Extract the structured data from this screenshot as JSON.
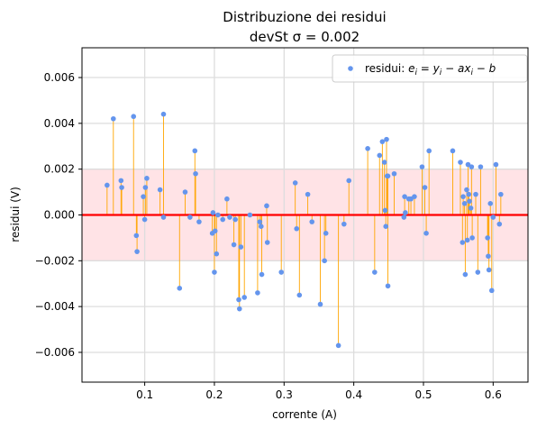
{
  "chart_data": {
    "type": "scatter",
    "title_lines": [
      "Distribuzione dei residui",
      "devSt σ = 0.002"
    ],
    "xlabel": "corrente (A)",
    "ylabel": "residui (V)",
    "xlim": [
      0.01,
      0.65
    ],
    "ylim": [
      -0.0073,
      0.0073
    ],
    "xticks": [
      0.1,
      0.2,
      0.3,
      0.4,
      0.5,
      0.6
    ],
    "xtick_labels": [
      "0.1",
      "0.2",
      "0.3",
      "0.4",
      "0.5",
      "0.6"
    ],
    "yticks": [
      -0.006,
      -0.004,
      -0.002,
      0.0,
      0.002,
      0.004,
      0.006
    ],
    "ytick_labels": [
      "−0.006",
      "−0.004",
      "−0.002",
      "0.000",
      "0.002",
      "0.004",
      "0.006"
    ],
    "grid": true,
    "band": {
      "ymin": -0.002,
      "ymax": 0.002,
      "color": "#ffe3e6"
    },
    "zero_line_color": "#ff0000",
    "stem_color": "#ffa500",
    "point_color": "#6495ed",
    "legend": {
      "label": "residui: e_i = y_i − a x_i − b",
      "placement": "upper right"
    },
    "points": [
      [
        0.046,
        0.0013
      ],
      [
        0.055,
        0.0042
      ],
      [
        0.066,
        0.0015
      ],
      [
        0.067,
        0.0012
      ],
      [
        0.084,
        0.0043
      ],
      [
        0.088,
        -0.0009
      ],
      [
        0.089,
        -0.0016
      ],
      [
        0.098,
        0.0008
      ],
      [
        0.1,
        -0.0002
      ],
      [
        0.101,
        0.0012
      ],
      [
        0.103,
        0.0016
      ],
      [
        0.122,
        0.0011
      ],
      [
        0.127,
        0.0044
      ],
      [
        0.127,
        -0.0001
      ],
      [
        0.15,
        -0.0032
      ],
      [
        0.158,
        0.001
      ],
      [
        0.165,
        -0.0001
      ],
      [
        0.172,
        0.0028
      ],
      [
        0.173,
        0.0018
      ],
      [
        0.178,
        -0.0003
      ],
      [
        0.197,
        -0.0008
      ],
      [
        0.198,
        0.0001
      ],
      [
        0.2,
        -0.0025
      ],
      [
        0.201,
        -0.0007
      ],
      [
        0.203,
        -0.0017
      ],
      [
        0.205,
        0.0
      ],
      [
        0.212,
        -0.0002
      ],
      [
        0.218,
        0.0007
      ],
      [
        0.222,
        -0.0001
      ],
      [
        0.228,
        -0.0013
      ],
      [
        0.23,
        -0.0002
      ],
      [
        0.235,
        -0.0037
      ],
      [
        0.236,
        -0.0041
      ],
      [
        0.238,
        -0.0014
      ],
      [
        0.243,
        -0.0036
      ],
      [
        0.251,
        0.0
      ],
      [
        0.262,
        -0.0034
      ],
      [
        0.265,
        -0.0003
      ],
      [
        0.267,
        -0.0005
      ],
      [
        0.268,
        -0.0026
      ],
      [
        0.275,
        0.0004
      ],
      [
        0.276,
        -0.0012
      ],
      [
        0.296,
        -0.0025
      ],
      [
        0.316,
        0.0014
      ],
      [
        0.318,
        -0.0006
      ],
      [
        0.322,
        -0.0035
      ],
      [
        0.334,
        0.0009
      ],
      [
        0.34,
        -0.0003
      ],
      [
        0.352,
        -0.0039
      ],
      [
        0.358,
        -0.002
      ],
      [
        0.36,
        -0.0008
      ],
      [
        0.378,
        -0.0057
      ],
      [
        0.386,
        -0.0004
      ],
      [
        0.393,
        0.0015
      ],
      [
        0.42,
        0.0029
      ],
      [
        0.43,
        -0.0025
      ],
      [
        0.437,
        0.0026
      ],
      [
        0.441,
        0.0032
      ],
      [
        0.444,
        0.0023
      ],
      [
        0.445,
        0.0002
      ],
      [
        0.446,
        -0.0005
      ],
      [
        0.447,
        0.0033
      ],
      [
        0.448,
        0.0017
      ],
      [
        0.449,
        0.0017
      ],
      [
        0.449,
        -0.0031
      ],
      [
        0.458,
        0.0018
      ],
      [
        0.472,
        -0.0001
      ],
      [
        0.473,
        0.0008
      ],
      [
        0.474,
        0.0001
      ],
      [
        0.479,
        0.0007
      ],
      [
        0.482,
        0.0007
      ],
      [
        0.487,
        0.0008
      ],
      [
        0.498,
        0.0021
      ],
      [
        0.502,
        0.0012
      ],
      [
        0.504,
        -0.0008
      ],
      [
        0.508,
        0.0028
      ],
      [
        0.542,
        0.0028
      ],
      [
        0.553,
        0.0023
      ],
      [
        0.556,
        -0.0012
      ],
      [
        0.557,
        0.0008
      ],
      [
        0.559,
        0.0005
      ],
      [
        0.56,
        -0.0026
      ],
      [
        0.562,
        0.0011
      ],
      [
        0.563,
        -0.0011
      ],
      [
        0.564,
        0.0022
      ],
      [
        0.565,
        0.0009
      ],
      [
        0.566,
        0.0006
      ],
      [
        0.568,
        0.0003
      ],
      [
        0.569,
        0.0021
      ],
      [
        0.57,
        -0.001
      ],
      [
        0.575,
        0.0009
      ],
      [
        0.578,
        -0.0025
      ],
      [
        0.582,
        0.0021
      ],
      [
        0.592,
        -0.001
      ],
      [
        0.593,
        -0.0018
      ],
      [
        0.594,
        -0.0024
      ],
      [
        0.596,
        0.0005
      ],
      [
        0.598,
        -0.0033
      ],
      [
        0.6,
        -0.0001
      ],
      [
        0.604,
        0.0022
      ],
      [
        0.609,
        -0.0004
      ],
      [
        0.611,
        0.0009
      ]
    ]
  }
}
